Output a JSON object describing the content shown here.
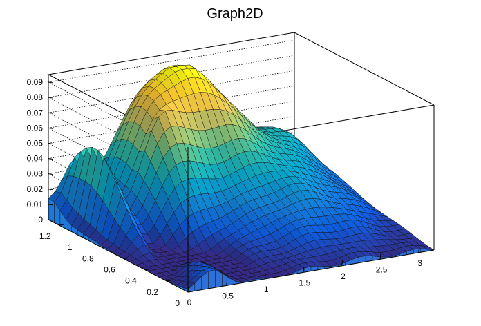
{
  "chart_data": {
    "type": "surface",
    "title": "Graph2D",
    "xlabel": "",
    "ylabel": "",
    "zlabel": "",
    "xlim": [
      0,
      3.2
    ],
    "ylim": [
      0,
      1.3
    ],
    "zlim": [
      0,
      0.095
    ],
    "x_ticks": [
      "0",
      "0.5",
      "1",
      "1.5",
      "2",
      "2.5",
      "3"
    ],
    "y_ticks": [
      "0",
      "0.2",
      "0.4",
      "0.6",
      "0.8",
      "1",
      "1.2"
    ],
    "z_ticks": [
      "0",
      "0.01",
      "0.02",
      "0.03",
      "0.04",
      "0.05",
      "0.06",
      "0.07",
      "0.08",
      "0.09"
    ],
    "grid": true,
    "colormap": [
      "#352a87",
      "#0f5cdd",
      "#1481d6",
      "#06a4ca",
      "#2eb7a4",
      "#87bf77",
      "#d1bb59",
      "#fec832",
      "#f9fb0e"
    ],
    "surface_model": {
      "grid_x": 36,
      "grid_y": 24,
      "features": [
        {
          "name": "main peak",
          "x": 1.55,
          "y": 1.25,
          "z": 0.09
        },
        {
          "name": "ridge peak",
          "x": 0.3,
          "y": 1.05,
          "z": 0.05
        },
        {
          "name": "back ridge",
          "x": 2.6,
          "y": 1.3,
          "z": 0.03
        },
        {
          "name": "valley",
          "x": 0.7,
          "y": 0.55,
          "z": 0.0
        }
      ]
    }
  }
}
